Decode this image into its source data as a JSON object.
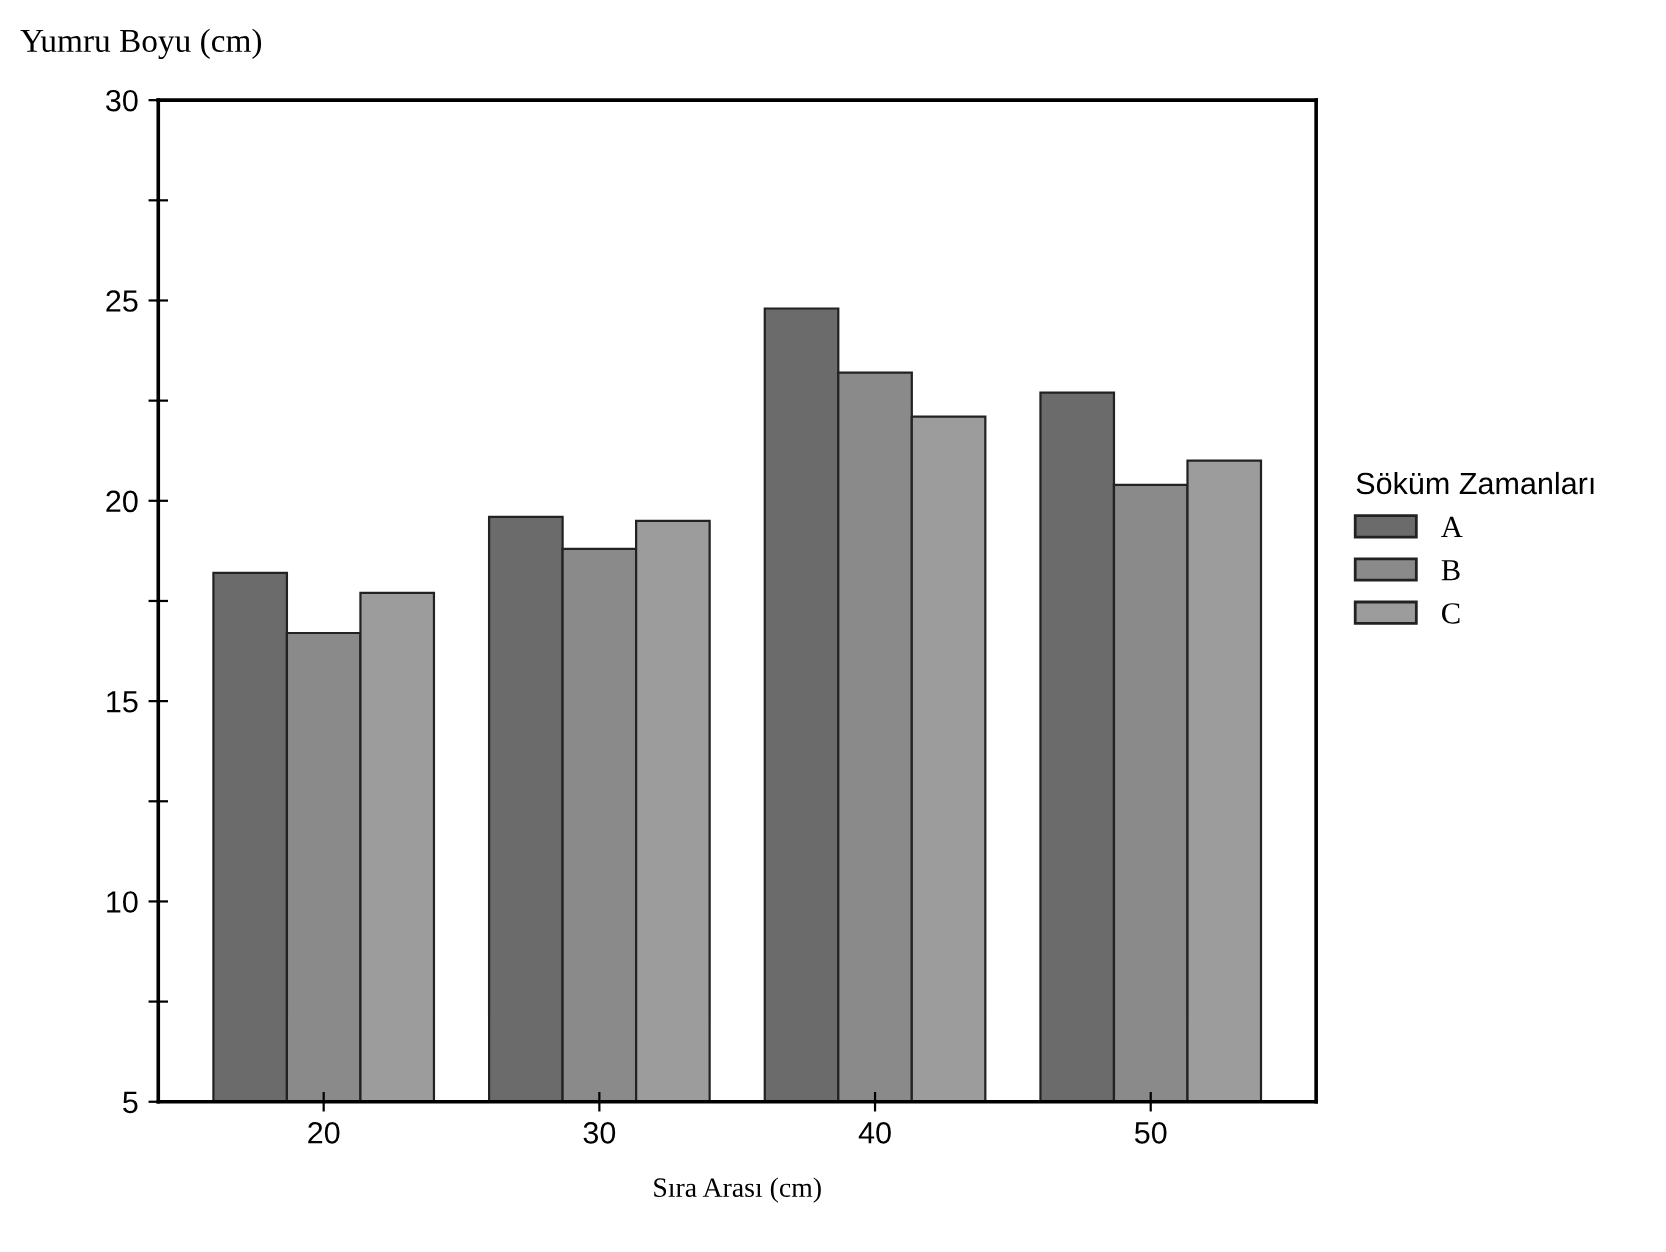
{
  "chart_data": {
    "type": "bar",
    "ylabel": "Yumru Boyu (cm)",
    "xlabel": "Sıra Arası (cm)",
    "legend_title": "Söküm Zamanları",
    "categories": [
      "20",
      "30",
      "40",
      "50"
    ],
    "series": [
      {
        "name": "A",
        "color": "#6b6b6b",
        "values": [
          18.2,
          19.6,
          24.8,
          22.7
        ]
      },
      {
        "name": "B",
        "color": "#8a8a8a",
        "values": [
          16.7,
          18.8,
          23.2,
          20.4
        ]
      },
      {
        "name": "C",
        "color": "#9c9c9c",
        "values": [
          17.7,
          19.5,
          22.1,
          21.0
        ]
      }
    ],
    "ylim": [
      5,
      30
    ],
    "yticks": [
      5,
      {
        "value": 7.5,
        "label": null
      },
      10,
      {
        "value": 12.5,
        "label": null
      },
      15,
      {
        "value": 17.5,
        "label": null
      },
      20,
      {
        "value": 22.5,
        "label": null
      },
      25,
      {
        "value": 27.5,
        "label": null
      },
      30
    ],
    "grid": false,
    "legend": "right"
  }
}
